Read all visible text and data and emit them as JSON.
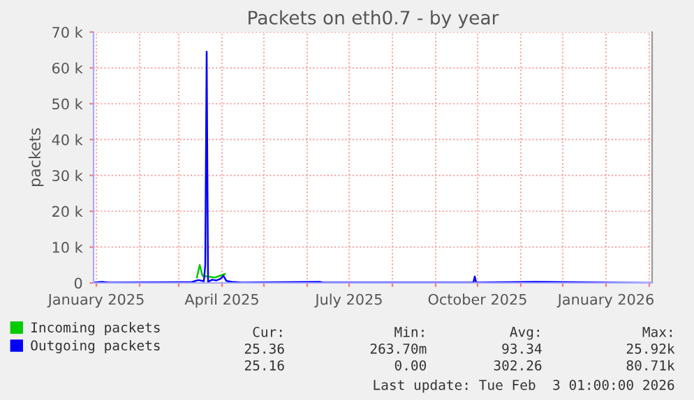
{
  "chart_data": {
    "type": "line",
    "title": "Packets on eth0.7 - by year",
    "ylabel": "packets",
    "series": [
      {
        "name": "Incoming packets",
        "color": "#00cc00",
        "x": [
          "2025-03-14",
          "2025-03-16",
          "2025-03-18",
          "2025-03-27",
          "2025-04-03"
        ],
        "values": [
          1500,
          5000,
          2000,
          1500,
          2500
        ]
      },
      {
        "name": "Outgoing packets",
        "color": "#0000ff",
        "x": [
          "2024-12-30",
          "2025-01-05",
          "2025-01-10",
          "2025-03-10",
          "2025-03-15",
          "2025-03-19",
          "2025-03-20",
          "2025-03-21",
          "2025-03-22",
          "2025-03-25",
          "2025-03-28",
          "2025-03-31",
          "2025-04-02",
          "2025-04-04",
          "2025-04-08",
          "2025-04-15",
          "2025-06-10",
          "2025-06-12",
          "2025-09-28",
          "2025-09-29",
          "2025-09-30",
          "2025-11-15",
          "2026-01-01",
          "2026-02-02"
        ],
        "values": [
          100,
          300,
          100,
          200,
          800,
          500,
          5000,
          64500,
          300,
          900,
          700,
          1200,
          2000,
          600,
          300,
          100,
          300,
          100,
          100,
          1800,
          100,
          300,
          100,
          0
        ]
      }
    ],
    "xlim": [
      "2024-12-30",
      "2026-02-03"
    ],
    "xticks": [
      {
        "value": "2025-01-01",
        "label": "January 2025"
      },
      {
        "value": "2025-02-01",
        "label": null
      },
      {
        "value": "2025-03-01",
        "label": null
      },
      {
        "value": "2025-04-01",
        "label": "April 2025"
      },
      {
        "value": "2025-05-01",
        "label": null
      },
      {
        "value": "2025-06-01",
        "label": null
      },
      {
        "value": "2025-07-01",
        "label": "July 2025"
      },
      {
        "value": "2025-08-01",
        "label": null
      },
      {
        "value": "2025-09-01",
        "label": null
      },
      {
        "value": "2025-10-01",
        "label": "October 2025"
      },
      {
        "value": "2025-11-01",
        "label": null
      },
      {
        "value": "2025-12-01",
        "label": null
      },
      {
        "value": "2026-01-01",
        "label": "January 2026"
      },
      {
        "value": "2026-02-01",
        "label": null
      }
    ],
    "ylim": [
      0,
      70000
    ],
    "yticks": [
      0,
      {
        "value": 10000,
        "label": "10 k"
      },
      {
        "value": 20000,
        "label": "20 k"
      },
      {
        "value": 30000,
        "label": "30 k"
      },
      {
        "value": 40000,
        "label": "40 k"
      },
      {
        "value": 50000,
        "label": "50 k"
      },
      {
        "value": 60000,
        "label": "60 k"
      },
      {
        "value": 70000,
        "label": "70 k"
      }
    ],
    "grid": true,
    "legend": "bottom left",
    "marker": "none",
    "line_style": "solid",
    "annotations": [
      "Cur:",
      "Min:",
      "Avg:",
      "Max:",
      "25.36",
      "263.70m",
      "93.34",
      "25.92k",
      "25.16",
      "0.00",
      "302.26",
      "80.71k",
      "Last update: Tue Feb  3 01:00:00 2026"
    ]
  }
}
